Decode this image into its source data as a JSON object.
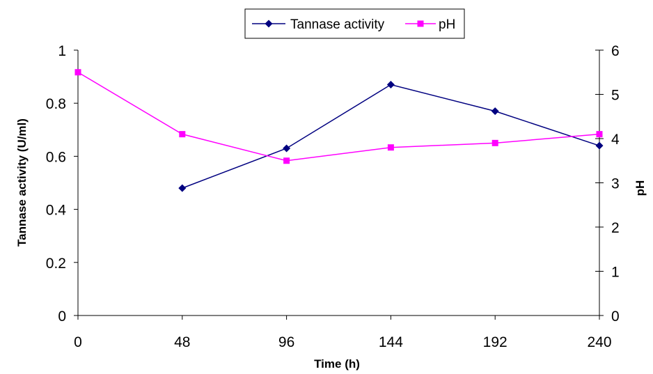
{
  "chart_data": {
    "type": "line",
    "x": [
      0,
      48,
      96,
      144,
      192,
      240
    ],
    "x_tick_labels": [
      "0",
      "48",
      "96",
      "144",
      "192",
      "240"
    ],
    "xlabel": "Time (h)",
    "xlim": [
      0,
      240
    ],
    "y_left": {
      "label": "Tannase activity (U/ml)",
      "lim": [
        0,
        1
      ],
      "tick_labels": [
        "0",
        "0.2",
        "0.4",
        "0.6",
        "0.8",
        "1"
      ]
    },
    "y_right": {
      "label": "pH",
      "lim": [
        0,
        6
      ],
      "tick_labels": [
        "0",
        "1",
        "2",
        "3",
        "4",
        "5",
        "6"
      ]
    },
    "series": [
      {
        "name": "Tannase activity",
        "axis": "left",
        "marker": "diamond",
        "color": "#000080",
        "x": [
          48,
          96,
          144,
          192,
          240
        ],
        "values": [
          0.48,
          0.63,
          0.87,
          0.77,
          0.64
        ]
      },
      {
        "name": "pH",
        "axis": "right",
        "marker": "square",
        "color": "#ff00ff",
        "x": [
          0,
          48,
          96,
          144,
          192,
          240
        ],
        "values": [
          5.5,
          4.1,
          3.5,
          3.8,
          3.9,
          4.1
        ]
      }
    ],
    "grid": false,
    "legend_position": "top-center"
  }
}
